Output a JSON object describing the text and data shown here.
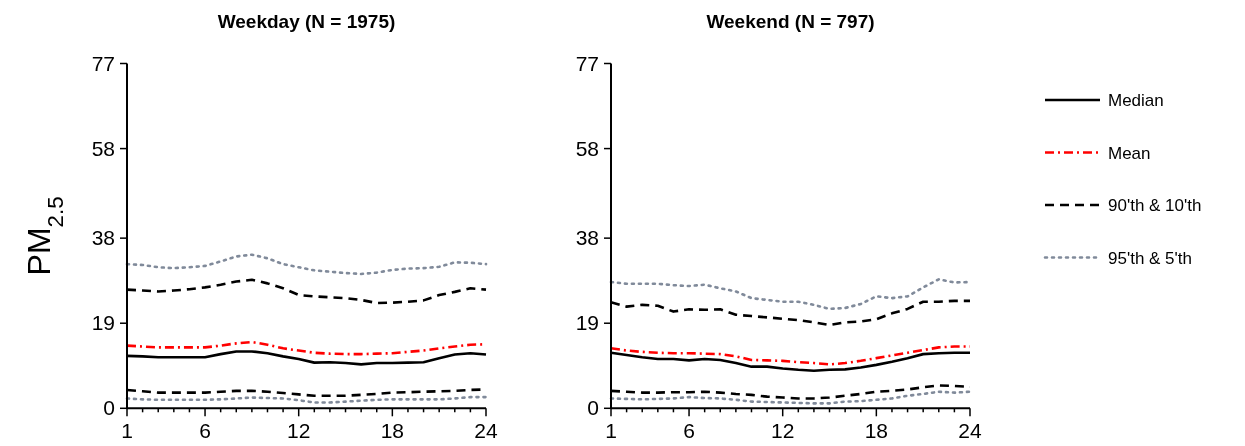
{
  "chart_data": [
    {
      "type": "line",
      "title": "Weekday (N = 1975)",
      "ylabel": "PM$_{2.5}$",
      "x": [
        1,
        2,
        3,
        4,
        5,
        6,
        7,
        8,
        9,
        10,
        11,
        12,
        13,
        14,
        15,
        16,
        17,
        18,
        19,
        20,
        21,
        22,
        23,
        24
      ],
      "xlim": [
        1,
        24
      ],
      "xticks": [
        1,
        {
          "value": 2,
          "label": null
        },
        {
          "value": 3,
          "label": null
        },
        {
          "value": 4,
          "label": null
        },
        {
          "value": 5,
          "label": null
        },
        6,
        {
          "value": 7,
          "label": null
        },
        {
          "value": 8,
          "label": null
        },
        {
          "value": 9,
          "label": null
        },
        {
          "value": 10,
          "label": null
        },
        {
          "value": 11,
          "label": null
        },
        12,
        {
          "value": 13,
          "label": null
        },
        {
          "value": 14,
          "label": null
        },
        {
          "value": 15,
          "label": null
        },
        {
          "value": 16,
          "label": null
        },
        {
          "value": 17,
          "label": null
        },
        18,
        {
          "value": 19,
          "label": null
        },
        {
          "value": 20,
          "label": null
        },
        {
          "value": 21,
          "label": null
        },
        {
          "value": 22,
          "label": null
        },
        {
          "value": 23,
          "label": null
        },
        24
      ],
      "ylim": [
        0,
        77
      ],
      "yticks": [
        0,
        19,
        38,
        58,
        77
      ],
      "grid": false,
      "legend": false,
      "marker": "none",
      "series": [
        {
          "color": "#000000",
          "line_style": "solid",
          "values": [
            11.7,
            11.6,
            11.4,
            11.4,
            11.4,
            11.4,
            12.1,
            12.7,
            12.7,
            12.3,
            11.6,
            11.0,
            10.2,
            10.3,
            10.1,
            9.8,
            10.1,
            10.1,
            10.2,
            10.3,
            11.2,
            12.0,
            12.3,
            12.0
          ]
        },
        {
          "color": "#ff0000",
          "line_style": "dashdot",
          "values": [
            14.0,
            13.8,
            13.6,
            13.6,
            13.6,
            13.6,
            14.0,
            14.5,
            14.8,
            14.2,
            13.4,
            12.9,
            12.4,
            12.2,
            12.1,
            12.1,
            12.2,
            12.3,
            12.6,
            12.9,
            13.4,
            13.8,
            14.2,
            14.3
          ]
        },
        {
          "color": "#000000",
          "line_style": "dashed",
          "values": [
            26.5,
            26.3,
            26.1,
            26.3,
            26.6,
            27.0,
            27.6,
            28.3,
            28.7,
            27.9,
            26.8,
            25.3,
            25.0,
            24.8,
            24.6,
            24.2,
            23.5,
            23.6,
            23.8,
            24.1,
            25.3,
            26.0,
            26.8,
            26.5
          ]
        },
        {
          "color": "#000000",
          "line_style": "dashed",
          "values": [
            4.1,
            3.8,
            3.5,
            3.5,
            3.5,
            3.5,
            3.7,
            3.9,
            3.9,
            3.7,
            3.4,
            3.1,
            2.8,
            2.8,
            2.8,
            3.0,
            3.2,
            3.5,
            3.6,
            3.7,
            3.8,
            3.9,
            4.1,
            4.2
          ]
        },
        {
          "color": "#808a9a",
          "line_style": "dotted",
          "values": [
            32.2,
            32.0,
            31.5,
            31.3,
            31.5,
            31.8,
            32.8,
            33.9,
            34.3,
            33.5,
            32.2,
            31.5,
            30.8,
            30.5,
            30.2,
            30.0,
            30.3,
            30.9,
            31.2,
            31.3,
            31.6,
            32.6,
            32.5,
            32.2
          ]
        },
        {
          "color": "#808a9a",
          "line_style": "dotted",
          "values": [
            2.2,
            2.0,
            1.9,
            1.9,
            1.9,
            1.9,
            2.0,
            2.2,
            2.4,
            2.3,
            2.2,
            1.8,
            1.3,
            1.3,
            1.5,
            1.7,
            1.9,
            2.0,
            2.0,
            2.0,
            2.0,
            2.2,
            2.5,
            2.5
          ]
        }
      ]
    },
    {
      "type": "line",
      "title": "Weekend (N = 797)",
      "x": [
        1,
        2,
        3,
        4,
        5,
        6,
        7,
        8,
        9,
        10,
        11,
        12,
        13,
        14,
        15,
        16,
        17,
        18,
        19,
        20,
        21,
        22,
        23,
        24
      ],
      "xlim": [
        1,
        24
      ],
      "xticks": [
        1,
        {
          "value": 2,
          "label": null
        },
        {
          "value": 3,
          "label": null
        },
        {
          "value": 4,
          "label": null
        },
        {
          "value": 5,
          "label": null
        },
        6,
        {
          "value": 7,
          "label": null
        },
        {
          "value": 8,
          "label": null
        },
        {
          "value": 9,
          "label": null
        },
        {
          "value": 10,
          "label": null
        },
        {
          "value": 11,
          "label": null
        },
        12,
        {
          "value": 13,
          "label": null
        },
        {
          "value": 14,
          "label": null
        },
        {
          "value": 15,
          "label": null
        },
        {
          "value": 16,
          "label": null
        },
        {
          "value": 17,
          "label": null
        },
        18,
        {
          "value": 19,
          "label": null
        },
        {
          "value": 20,
          "label": null
        },
        {
          "value": 21,
          "label": null
        },
        {
          "value": 22,
          "label": null
        },
        {
          "value": 23,
          "label": null
        },
        24
      ],
      "ylim": [
        0,
        77
      ],
      "yticks": [
        0,
        19,
        38,
        58,
        77
      ],
      "grid": false,
      "legend": "right",
      "marker": "none",
      "series": [
        {
          "name": "Median",
          "color": "#000000",
          "line_style": "solid",
          "values": [
            12.4,
            11.9,
            11.4,
            11.0,
            11.0,
            10.7,
            11.0,
            10.8,
            10.1,
            9.3,
            9.3,
            8.9,
            8.6,
            8.4,
            8.6,
            8.7,
            9.1,
            9.7,
            10.4,
            11.2,
            12.1,
            12.3,
            12.4,
            12.4
          ]
        },
        {
          "name": "Mean",
          "color": "#ff0000",
          "line_style": "dashdot",
          "values": [
            13.4,
            12.9,
            12.6,
            12.4,
            12.3,
            12.3,
            12.2,
            12.1,
            11.6,
            10.8,
            10.7,
            10.6,
            10.3,
            10.1,
            9.8,
            10.1,
            10.6,
            11.2,
            11.8,
            12.4,
            13.0,
            13.6,
            13.8,
            13.8
          ]
        },
        {
          "name": "90'th & 10'th",
          "color": "#000000",
          "line_style": "dashed",
          "values": [
            23.7,
            22.7,
            23.1,
            22.9,
            21.6,
            22.1,
            22.0,
            22.1,
            20.9,
            20.6,
            20.3,
            20.0,
            19.7,
            19.2,
            18.6,
            19.2,
            19.4,
            19.9,
            21.2,
            22.2,
            23.8,
            23.8,
            24.0,
            24.0
          ]
        },
        {
          "color": "#000000",
          "line_style": "dashed",
          "values": [
            3.9,
            3.7,
            3.5,
            3.5,
            3.6,
            3.6,
            3.7,
            3.5,
            3.2,
            3.0,
            2.6,
            2.4,
            2.2,
            2.2,
            2.4,
            2.8,
            3.2,
            3.7,
            3.9,
            4.2,
            4.7,
            5.1,
            5.0,
            4.8
          ]
        },
        {
          "name": "95'th & 5'th",
          "color": "#808a9a",
          "line_style": "dotted",
          "values": [
            28.2,
            27.8,
            27.8,
            27.8,
            27.5,
            27.3,
            27.6,
            26.8,
            26.1,
            24.6,
            24.2,
            23.8,
            23.8,
            23.1,
            22.2,
            22.4,
            23.3,
            25.0,
            24.6,
            25.0,
            27.0,
            28.8,
            28.1,
            28.2
          ]
        },
        {
          "color": "#808a9a",
          "line_style": "dotted",
          "values": [
            2.2,
            2.1,
            2.0,
            2.1,
            2.2,
            2.5,
            2.3,
            2.2,
            1.9,
            1.5,
            1.4,
            1.3,
            1.2,
            1.1,
            1.1,
            1.5,
            1.6,
            1.9,
            2.2,
            2.8,
            3.2,
            3.7,
            3.5,
            3.7
          ]
        }
      ]
    }
  ]
}
